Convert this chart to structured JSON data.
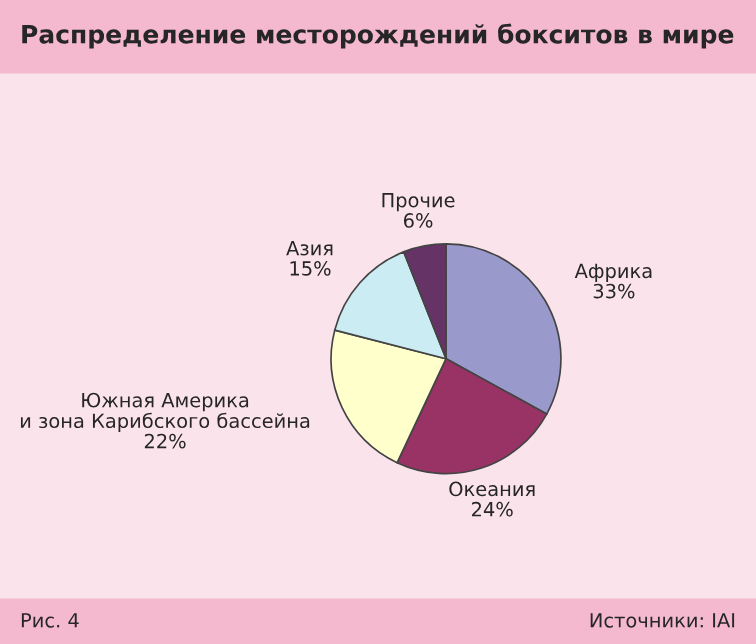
{
  "chart_data": {
    "type": "pie",
    "title": "Распределение месторождений бокситов в мире",
    "categories": [
      "Африка",
      "Океания",
      "Южная Америка\nи зона Карибского бассейна",
      "Азия",
      "Прочие"
    ],
    "values": [
      33,
      24,
      22,
      15,
      6
    ],
    "value_labels": [
      "33%",
      "24%",
      "22%",
      "15%",
      "6%"
    ],
    "colors": [
      "#9999cc",
      "#993366",
      "#ffffcc",
      "#ccecf4",
      "#663366"
    ],
    "annotations": [
      "Рис. 4",
      "Источники: IAI"
    ],
    "legend": false
  }
}
